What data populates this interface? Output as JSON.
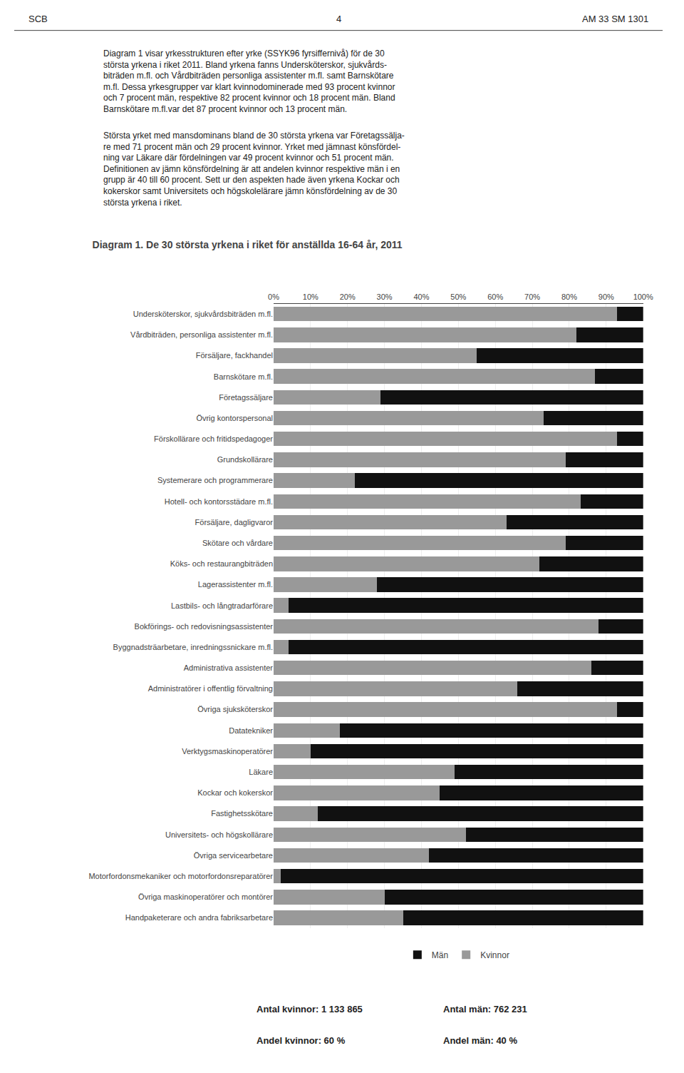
{
  "chart_data": {
    "type": "bar",
    "title": "Diagram 1. De 30 största yrkena i riket för anställda 16-64 år, 2011",
    "orientation": "horizontal",
    "stacked": true,
    "categories": [
      "Undersköterskor, sjukvårdsbiträden m.fl.",
      "Vårdbiträden, personliga assistenter m.fl.",
      "Försäljare, fackhandel",
      "Barnskötare m.fl.",
      "Företagssäljare",
      "Övrig kontorspersonal",
      "Förskollärare och fritidspedagoger",
      "Grundskollärare",
      "Systemerare och programmerare",
      "Hotell- och kontorsstädare m.fl.",
      "Försäljare, dagligvaror",
      "Skötare och vårdare",
      "Köks- och restaurangbiträden",
      "Lagerassistenter m.fl.",
      "Lastbils- och långtradarförare",
      "Bokförings- och redovisningsassistenter",
      "Byggnadsträarbetare, inredningssnickare m.fl.",
      "Administrativa assistenter",
      "Administratörer i offentlig förvaltning",
      "Övriga sjuksköterskor",
      "Datatekniker",
      "Verktygsmaskinoperatörer",
      "Läkare",
      "Kockar och kokerskor",
      "Fastighetsskötare",
      "Universitets- och högskollärare",
      "Övriga servicearbetare",
      "Motorfordonsmekaniker och motorfordonsreparatörer",
      "Övriga maskinoperatörer och montörer",
      "Handpaketerare och andra fabriksarbetare"
    ],
    "series": [
      {
        "name": "Kvinnor",
        "color": "#999999",
        "values": [
          93,
          82,
          55,
          87,
          29,
          73,
          93,
          79,
          22,
          83,
          63,
          79,
          72,
          28,
          4,
          88,
          4,
          86,
          66,
          93,
          18,
          10,
          49,
          45,
          12,
          52,
          42,
          2,
          30,
          35
        ]
      },
      {
        "name": "Män",
        "color": "#111111",
        "values": [
          7,
          18,
          45,
          13,
          71,
          27,
          7,
          21,
          78,
          17,
          37,
          21,
          28,
          72,
          96,
          12,
          96,
          14,
          34,
          7,
          82,
          90,
          51,
          55,
          88,
          48,
          58,
          98,
          70,
          65
        ]
      }
    ],
    "xlim": [
      0,
      100
    ],
    "xticks": [
      {
        "value": 0,
        "label": "0%"
      },
      {
        "value": 10,
        "label": "10%"
      },
      {
        "value": 20,
        "label": "20%"
      },
      {
        "value": 30,
        "label": "30%"
      },
      {
        "value": 40,
        "label": "40%"
      },
      {
        "value": 50,
        "label": "50%"
      },
      {
        "value": 60,
        "label": "60%"
      },
      {
        "value": 70,
        "label": "70%"
      },
      {
        "value": 80,
        "label": "80%"
      },
      {
        "value": 90,
        "label": "90%"
      },
      {
        "value": 100,
        "label": "100%"
      }
    ],
    "grid": true,
    "legend": "bottom",
    "annotations": [
      "SCB",
      "4",
      "AM 33 SM 1301",
      "Diagram 1 visar yrkesstrukturen efter yrke (SSYK96 fyrsiffernivå) för de 30\nstörsta yrkena i riket 2011. Bland yrkena fanns Undersköterskor, sjukvårds-\nbiträden m.fl. och Vårdbiträden personliga assistenter m.fl. samt Barnskötare\nm.fl. Dessa yrkesgrupper var klart kvinnodominerade med 93 procent kvinnor\noch 7 procent män, respektive 82 procent kvinnor och 18 procent män. Bland\nBarnskötare m.fl.var det 87 procent kvinnor och 13 procent män.",
      "Största yrket med mansdominans bland de 30 största yrkena var Företagssälja-\nre med 71 procent män och 29 procent kvinnor. Yrket med jämnast könsfördel-\nning var Läkare där fördelningen var 49 procent kvinnor och 51 procent män.\nDefinitionen av jämn könsfördelning är att andelen kvinnor respektive män i en\ngrupp är 40 till 60 procent. Sett ur den aspekten hade även yrkena Kockar och\nkokerskor samt Universitets och högskolelärare jämn könsfördelning av de 30\nstörsta yrkena i riket.",
      "Antal kvinnor: 1 133 865",
      "Antal män: 762 231",
      "Andel kvinnor: 60 %",
      "Andel män: 40 %"
    ]
  }
}
